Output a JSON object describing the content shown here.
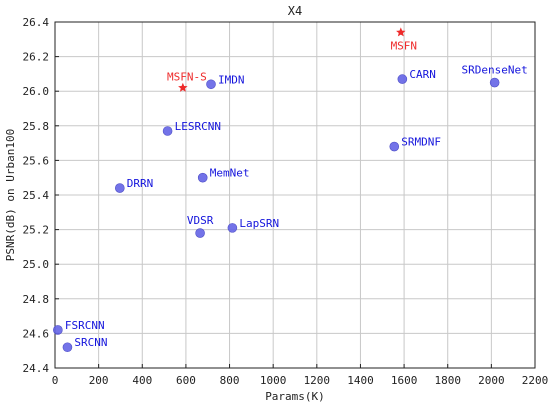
{
  "chart_data": {
    "type": "scatter",
    "title": "X4",
    "xlabel": "Params(K)",
    "ylabel": "PSNR(dB) on Urban100",
    "xlim": [
      0,
      2200
    ],
    "ylim": [
      24.4,
      26.4
    ],
    "xticks": [
      0,
      200,
      400,
      600,
      800,
      1000,
      1200,
      1400,
      1600,
      1800,
      2000,
      2200
    ],
    "yticks": [
      24.4,
      24.6,
      24.8,
      25.0,
      25.2,
      25.4,
      25.6,
      25.8,
      26.0,
      26.2,
      26.4
    ],
    "grid": true,
    "colors": {
      "baseline_point": "#6464e6",
      "baseline_label": "#1414dc",
      "proposed": "#ee2a2a",
      "grid": "#c8c8c8",
      "axis": "#222222"
    },
    "points": [
      {
        "name": "FSRCNN",
        "x": 13,
        "y": 24.62,
        "marker": "circle",
        "group": "baseline"
      },
      {
        "name": "SRCNN",
        "x": 57,
        "y": 24.52,
        "marker": "circle",
        "group": "baseline"
      },
      {
        "name": "DRRN",
        "x": 297,
        "y": 25.44,
        "marker": "circle",
        "group": "baseline"
      },
      {
        "name": "LESRCNN",
        "x": 516,
        "y": 25.77,
        "marker": "circle",
        "group": "baseline"
      },
      {
        "name": "VDSR",
        "x": 665,
        "y": 25.18,
        "marker": "circle",
        "group": "baseline"
      },
      {
        "name": "MemNet",
        "x": 677,
        "y": 25.5,
        "marker": "circle",
        "group": "baseline"
      },
      {
        "name": "IMDN",
        "x": 715,
        "y": 26.04,
        "marker": "circle",
        "group": "baseline"
      },
      {
        "name": "LapSRN",
        "x": 813,
        "y": 25.21,
        "marker": "circle",
        "group": "baseline"
      },
      {
        "name": "SRMDNF",
        "x": 1555,
        "y": 25.68,
        "marker": "circle",
        "group": "baseline"
      },
      {
        "name": "CARN",
        "x": 1592,
        "y": 26.07,
        "marker": "circle",
        "group": "baseline"
      },
      {
        "name": "SRDenseNet",
        "x": 2015,
        "y": 26.05,
        "marker": "circle",
        "group": "baseline"
      },
      {
        "name": "MSFN-S",
        "x": 586,
        "y": 26.02,
        "marker": "star",
        "group": "proposed"
      },
      {
        "name": "MSFN",
        "x": 1585,
        "y": 26.34,
        "marker": "star",
        "group": "proposed"
      }
    ]
  }
}
